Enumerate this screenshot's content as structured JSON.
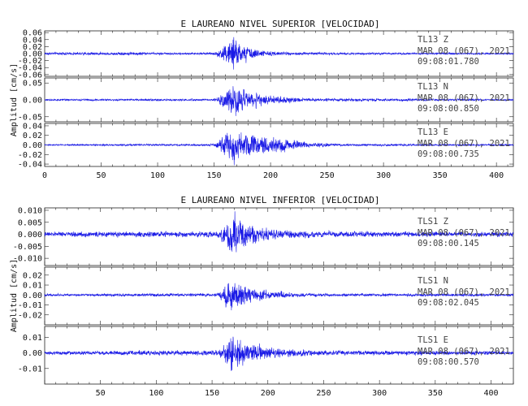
{
  "chart_data": [
    {
      "type": "line",
      "title": "E LAUREANO NIVEL SUPERIOR [VELOCIDAD]",
      "xlabel": "",
      "ylabel": "Amplitud [cm/s]",
      "xlim": [
        0,
        415
      ],
      "x_ticks": [
        "0",
        "50",
        "100",
        "150",
        "200",
        "250",
        "300",
        "350",
        "400"
      ],
      "color": "#1a1ae6",
      "panels": [
        {
          "name": "TL13 Z",
          "station": "TL13",
          "component": "Z",
          "date": "MAR 08 (067), 2021",
          "time": "09:08:01.780",
          "ylim": [
            -0.065,
            0.065
          ],
          "y_ticks": [
            "0.06",
            "0.04",
            "0.02",
            "0.00",
            "-0.02",
            "-0.04",
            "-0.06"
          ],
          "peak": 0.06,
          "envelope": [
            {
              "x": 0,
              "amp": 0.004
            },
            {
              "x": 85,
              "amp": 0.006
            },
            {
              "x": 95,
              "amp": 0.004
            },
            {
              "x": 150,
              "amp": 0.004
            },
            {
              "x": 157,
              "amp": 0.02
            },
            {
              "x": 167,
              "amp": 0.06
            },
            {
              "x": 175,
              "amp": 0.03
            },
            {
              "x": 190,
              "amp": 0.012
            },
            {
              "x": 210,
              "amp": 0.006
            },
            {
              "x": 260,
              "amp": 0.004
            },
            {
              "x": 415,
              "amp": 0.003
            }
          ]
        },
        {
          "name": "TL13 N",
          "station": "TL13",
          "component": "N",
          "date": "MAR 08 (067), 2021",
          "time": "09:08:00.850",
          "ylim": [
            -0.065,
            0.065
          ],
          "y_ticks": [
            "0.05",
            "0.00",
            "-0.05"
          ],
          "peak": 0.055,
          "envelope": [
            {
              "x": 0,
              "amp": 0.003
            },
            {
              "x": 150,
              "amp": 0.004
            },
            {
              "x": 158,
              "amp": 0.025
            },
            {
              "x": 167,
              "amp": 0.055
            },
            {
              "x": 180,
              "amp": 0.03
            },
            {
              "x": 200,
              "amp": 0.015
            },
            {
              "x": 230,
              "amp": 0.006
            },
            {
              "x": 415,
              "amp": 0.003
            }
          ]
        },
        {
          "name": "TL13 E",
          "station": "TL13",
          "component": "E",
          "date": "MAR 08 (067), 2021",
          "time": "09:08:00.735",
          "ylim": [
            -0.045,
            0.045
          ],
          "y_ticks": [
            "0.04",
            "0.02",
            "0.00",
            "-0.02",
            "-0.04"
          ],
          "peak": 0.042,
          "envelope": [
            {
              "x": 0,
              "amp": 0.002
            },
            {
              "x": 150,
              "amp": 0.003
            },
            {
              "x": 157,
              "amp": 0.02
            },
            {
              "x": 167,
              "amp": 0.042
            },
            {
              "x": 185,
              "amp": 0.025
            },
            {
              "x": 215,
              "amp": 0.015
            },
            {
              "x": 235,
              "amp": 0.006
            },
            {
              "x": 260,
              "amp": 0.003
            },
            {
              "x": 415,
              "amp": 0.002
            }
          ]
        }
      ]
    },
    {
      "type": "line",
      "title": "E LAUREANO NIVEL INFERIOR [VELOCIDAD]",
      "xlabel": "",
      "ylabel": "Amplitud [cm/s]",
      "xlim": [
        0,
        420
      ],
      "x_ticks": [
        "50",
        "100",
        "150",
        "200",
        "250",
        "300",
        "350",
        "400"
      ],
      "color": "#1a1ae6",
      "panels": [
        {
          "name": "TLS1 Z",
          "station": "TLS1",
          "component": "Z",
          "date": "MAR 08 (067), 2021",
          "time": "09:08:00.145",
          "ylim": [
            -0.013,
            0.011
          ],
          "y_ticks": [
            "0.010",
            "0.005",
            "0.000",
            "-0.005",
            "-0.010"
          ],
          "peak": 0.011,
          "envelope": [
            {
              "x": 0,
              "amp": 0.0012
            },
            {
              "x": 155,
              "amp": 0.0015
            },
            {
              "x": 160,
              "amp": 0.004
            },
            {
              "x": 168,
              "amp": 0.011
            },
            {
              "x": 180,
              "amp": 0.006
            },
            {
              "x": 200,
              "amp": 0.003
            },
            {
              "x": 240,
              "amp": 0.0015
            },
            {
              "x": 420,
              "amp": 0.0012
            }
          ]
        },
        {
          "name": "TLS1 N",
          "station": "TLS1",
          "component": "N",
          "date": "MAR 08 (067), 2021",
          "time": "09:08:02.045",
          "ylim": [
            -0.03,
            0.028
          ],
          "y_ticks": [
            "0.02",
            "0.01",
            "0.00",
            "-0.01",
            "-0.02"
          ],
          "peak": 0.027,
          "envelope": [
            {
              "x": 0,
              "amp": 0.0015
            },
            {
              "x": 155,
              "amp": 0.002
            },
            {
              "x": 160,
              "amp": 0.008
            },
            {
              "x": 168,
              "amp": 0.027
            },
            {
              "x": 180,
              "amp": 0.01
            },
            {
              "x": 205,
              "amp": 0.004
            },
            {
              "x": 240,
              "amp": 0.002
            },
            {
              "x": 420,
              "amp": 0.0015
            }
          ]
        },
        {
          "name": "TLS1 E",
          "station": "TLS1",
          "component": "E",
          "date": "MAR 08 (067), 2021",
          "time": "09:08:00.570",
          "ylim": [
            -0.02,
            0.017
          ],
          "y_ticks": [
            "0.01",
            "0.00",
            "-0.01"
          ],
          "peak": 0.016,
          "envelope": [
            {
              "x": 0,
              "amp": 0.0015
            },
            {
              "x": 155,
              "amp": 0.002
            },
            {
              "x": 160,
              "amp": 0.006
            },
            {
              "x": 168,
              "amp": 0.016
            },
            {
              "x": 180,
              "amp": 0.008
            },
            {
              "x": 205,
              "amp": 0.004
            },
            {
              "x": 240,
              "amp": 0.002
            },
            {
              "x": 420,
              "amp": 0.0015
            }
          ]
        }
      ]
    }
  ]
}
